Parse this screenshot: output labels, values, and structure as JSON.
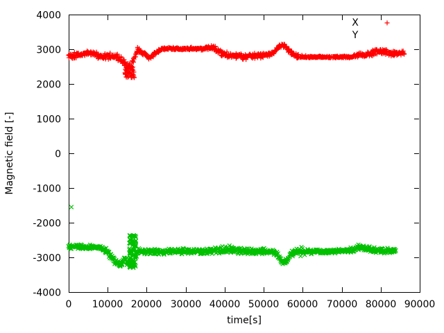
{
  "window": {
    "background": "#ffffff",
    "axis_color": "#000000"
  },
  "chart_data": {
    "type": "scatter",
    "title": "",
    "xlabel": "time[s]",
    "ylabel": "Magnetic field [-]",
    "xlim": [
      0,
      90000
    ],
    "ylim": [
      -4000,
      4000
    ],
    "grid": false,
    "xticks": [
      0,
      10000,
      20000,
      30000,
      40000,
      50000,
      60000,
      70000,
      80000,
      90000
    ],
    "yticks": [
      -4000,
      -3000,
      -2000,
      -1000,
      0,
      1000,
      2000,
      3000,
      4000
    ],
    "legend": {
      "position": "top-right-inside",
      "entries": [
        {
          "label": "X",
          "marker": "plus",
          "color": "#ff0000",
          "sample_visible": true,
          "sample_x": 558,
          "sample_y": 33
        },
        {
          "label": "Y",
          "marker": "cross",
          "color": "#00c000",
          "sample_visible": false,
          "sample_x": 558,
          "sample_y": 51
        }
      ]
    },
    "series": [
      {
        "name": "X",
        "marker": "plus",
        "color": "#ff0000",
        "seed": 1337,
        "trend": [
          [
            0,
            2820,
            90
          ],
          [
            2500,
            2830,
            85
          ],
          [
            5000,
            2900,
            70
          ],
          [
            6500,
            2860,
            75
          ],
          [
            8000,
            2800,
            90
          ],
          [
            9500,
            2790,
            95
          ],
          [
            11000,
            2800,
            90
          ],
          [
            12500,
            2780,
            90
          ],
          [
            13800,
            2650,
            110
          ],
          [
            15000,
            2480,
            130
          ],
          [
            16000,
            2520,
            120
          ],
          [
            17000,
            2800,
            90
          ],
          [
            17800,
            2990,
            70
          ],
          [
            18800,
            2920,
            60
          ],
          [
            19800,
            2810,
            70
          ],
          [
            20800,
            2750,
            70
          ],
          [
            21800,
            2830,
            60
          ],
          [
            22800,
            2930,
            50
          ],
          [
            24000,
            3010,
            40
          ],
          [
            26000,
            3020,
            35
          ],
          [
            29000,
            3020,
            35
          ],
          [
            32000,
            3020,
            38
          ],
          [
            34500,
            3010,
            45
          ],
          [
            36000,
            3030,
            60
          ],
          [
            37000,
            3060,
            70
          ],
          [
            38000,
            3000,
            80
          ],
          [
            39000,
            2900,
            80
          ],
          [
            40500,
            2850,
            80
          ],
          [
            42000,
            2830,
            85
          ],
          [
            43500,
            2830,
            90
          ],
          [
            45000,
            2780,
            95
          ],
          [
            46500,
            2820,
            80
          ],
          [
            48000,
            2810,
            75
          ],
          [
            49500,
            2820,
            70
          ],
          [
            51000,
            2840,
            65
          ],
          [
            52500,
            2900,
            60
          ],
          [
            53800,
            3070,
            60
          ],
          [
            54700,
            3140,
            60
          ],
          [
            55600,
            3090,
            70
          ],
          [
            56600,
            2940,
            70
          ],
          [
            57800,
            2840,
            65
          ],
          [
            59000,
            2800,
            70
          ],
          [
            60500,
            2785,
            45
          ],
          [
            62000,
            2775,
            30
          ],
          [
            65000,
            2775,
            25
          ],
          [
            68000,
            2775,
            25
          ],
          [
            71000,
            2780,
            30
          ],
          [
            73000,
            2800,
            50
          ],
          [
            74500,
            2850,
            70
          ],
          [
            76000,
            2830,
            65
          ],
          [
            77500,
            2870,
            75
          ],
          [
            79000,
            2950,
            85
          ],
          [
            80300,
            2960,
            95
          ],
          [
            81500,
            2910,
            85
          ],
          [
            82800,
            2880,
            75
          ],
          [
            84200,
            2880,
            65
          ],
          [
            86000,
            2890,
            60
          ]
        ],
        "clusters": [
          {
            "t0": 14400,
            "t1": 16900,
            "vmin": 2180,
            "vmax": 2500,
            "count": 45
          }
        ],
        "outliers": []
      },
      {
        "name": "Y",
        "marker": "cross",
        "color": "#00c000",
        "seed": 4242,
        "trend": [
          [
            0,
            -2690,
            80
          ],
          [
            2000,
            -2695,
            75
          ],
          [
            4000,
            -2700,
            70
          ],
          [
            6000,
            -2700,
            70
          ],
          [
            8000,
            -2715,
            75
          ],
          [
            9300,
            -2760,
            90
          ],
          [
            10300,
            -2890,
            110
          ],
          [
            11300,
            -3050,
            110
          ],
          [
            12300,
            -3170,
            110
          ],
          [
            13100,
            -3220,
            115
          ],
          [
            13900,
            -3140,
            100
          ],
          [
            14400,
            -3060,
            95
          ],
          [
            15000,
            -3140,
            105
          ],
          [
            15700,
            -3220,
            115
          ],
          [
            16300,
            -3230,
            120
          ],
          [
            17000,
            -3060,
            140
          ],
          [
            17600,
            -2880,
            110
          ],
          [
            18200,
            -2820,
            85
          ],
          [
            20000,
            -2830,
            80
          ],
          [
            23000,
            -2840,
            80
          ],
          [
            26000,
            -2835,
            80
          ],
          [
            29000,
            -2830,
            80
          ],
          [
            32000,
            -2825,
            85
          ],
          [
            35000,
            -2820,
            90
          ],
          [
            37500,
            -2800,
            100
          ],
          [
            39500,
            -2790,
            110
          ],
          [
            41500,
            -2780,
            120
          ],
          [
            43500,
            -2800,
            105
          ],
          [
            45500,
            -2815,
            85
          ],
          [
            47500,
            -2820,
            80
          ],
          [
            49500,
            -2820,
            80
          ],
          [
            51500,
            -2830,
            80
          ],
          [
            53200,
            -2890,
            90
          ],
          [
            54600,
            -3140,
            90
          ],
          [
            55700,
            -3110,
            90
          ],
          [
            56800,
            -2920,
            85
          ],
          [
            58200,
            -2845,
            105
          ],
          [
            59800,
            -2825,
            135
          ],
          [
            61200,
            -2845,
            115
          ],
          [
            63000,
            -2830,
            75
          ],
          [
            65000,
            -2830,
            65
          ],
          [
            67000,
            -2825,
            60
          ],
          [
            69500,
            -2820,
            60
          ],
          [
            71500,
            -2810,
            70
          ],
          [
            73500,
            -2760,
            95
          ],
          [
            75200,
            -2700,
            115
          ],
          [
            76800,
            -2770,
            95
          ],
          [
            78500,
            -2790,
            85
          ],
          [
            80500,
            -2800,
            80
          ],
          [
            82000,
            -2800,
            80
          ],
          [
            83800,
            -2790,
            70
          ]
        ],
        "clusters": [
          {
            "t0": 15500,
            "t1": 17300,
            "vmin": -3300,
            "vmax": -2360,
            "count": 90
          }
        ],
        "outliers": [
          [
            700,
            -1550
          ]
        ]
      }
    ]
  }
}
